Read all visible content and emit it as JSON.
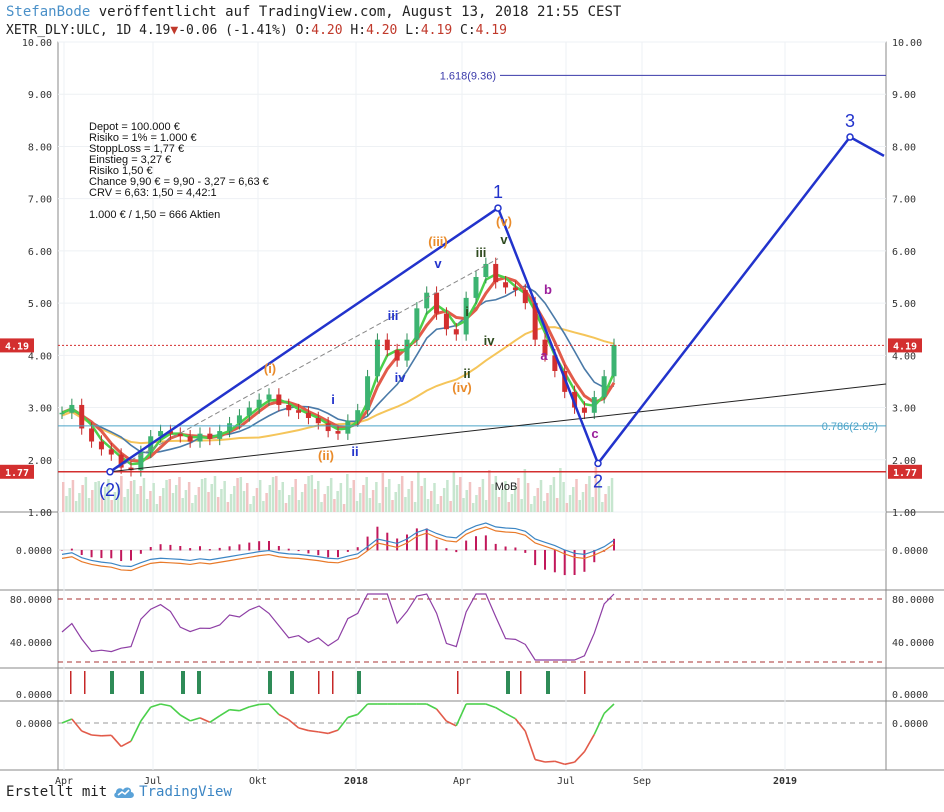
{
  "header": {
    "author": "StefanBode",
    "published": "veröffentlicht auf TradingView.com, August 13, 2018 21:55 CEST",
    "symbol": "XETR_DLY:ULC, 1D",
    "last": "4.19",
    "change": "-0.06 (-1.41%)",
    "ohlc": {
      "o_label": "O:",
      "o": "4.20",
      "h_label": "H:",
      "h": "4.20",
      "l_label": "L:",
      "l": "4.19",
      "c_label": "C:",
      "c": "4.19"
    }
  },
  "footer": {
    "created_label": "Erstellt mit",
    "brand": "TradingView"
  },
  "notes": [
    "Depot = 100.000 €",
    "Risiko = 1% = 1.000 €",
    "StoppLoss = 1,77 €",
    "Einstieg = 3,27 €",
    "Risiko 1,50 €",
    "Chance 9,90 € = 9,90 - 3,27 = 6,63 €",
    "CRV = 6,63: 1,50 = 4,42:1",
    "",
    "1.000 € / 1,50 = 666 Aktien"
  ],
  "colors": {
    "wave_blue": "#2233cc",
    "fib_blue": "#3a3aaa",
    "orange": "#e98b2a",
    "green_dark": "#2e4a1e",
    "purple": "#9b1f9b",
    "price_red": "#d32f2f",
    "ema_red": "#e25b4a",
    "ema_green": "#4bd04b",
    "ema_blue": "#4a7aa8",
    "sma_yellow": "#f5c55a",
    "teal": "#4aa3c8"
  },
  "chart_data": {
    "type": "candlestick",
    "y_axis": {
      "min": 1.0,
      "max": 10.0,
      "ticks": [
        "1.00",
        "2.00",
        "3.00",
        "4.00",
        "5.00",
        "6.00",
        "7.00",
        "8.00",
        "9.00",
        "10.00"
      ]
    },
    "x_ticks": [
      "Apr",
      "Jul",
      "Okt",
      "2018",
      "Apr",
      "Jul",
      "Sep",
      "2019"
    ],
    "price_line": {
      "label": "4.19",
      "value": 4.19
    },
    "stop_line": {
      "label": "1.77",
      "value": 1.77
    },
    "fib_levels": [
      {
        "label": "1.618(9.36)",
        "value": 9.36
      },
      {
        "label": "0.786(2.65)",
        "value": 2.65
      }
    ],
    "primary_waves": [
      {
        "label": "(2)",
        "value": 1.77
      },
      {
        "label": "1",
        "value": 6.82
      },
      {
        "label": "2",
        "value": 1.93
      },
      {
        "label": "3",
        "value": 8.18
      }
    ],
    "wave_labels": [
      "(i)",
      "(ii)",
      "(iii)",
      "(iv)",
      "(v)",
      "i",
      "ii",
      "iii",
      "iv",
      "v",
      "i",
      "ii",
      "iii",
      "iv",
      "v",
      "a",
      "b",
      "c"
    ],
    "volume_annotation": "MoB",
    "price_series": [
      2.9,
      3.05,
      2.6,
      2.35,
      2.2,
      2.1,
      1.85,
      1.8,
      2.15,
      2.45,
      2.55,
      2.5,
      2.45,
      2.35,
      2.5,
      2.4,
      2.55,
      2.7,
      2.85,
      3.0,
      3.15,
      3.25,
      3.05,
      2.95,
      2.9,
      2.8,
      2.7,
      2.55,
      2.5,
      2.75,
      2.95,
      3.6,
      4.3,
      4.1,
      3.9,
      4.3,
      4.9,
      5.2,
      4.8,
      4.5,
      4.4,
      5.1,
      5.5,
      5.75,
      5.4,
      5.3,
      5.25,
      5.0,
      4.3,
      4.0,
      3.7,
      3.3,
      3.0,
      2.9,
      3.2,
      3.6,
      4.2
    ],
    "indicators": {
      "macd_ticks": [
        "0.0000"
      ],
      "rsi_ticks": [
        "80.0000",
        "40.0000"
      ],
      "signal_ticks": [
        "0.0000"
      ],
      "oscillator_ticks": [
        "0.0000"
      ]
    }
  }
}
